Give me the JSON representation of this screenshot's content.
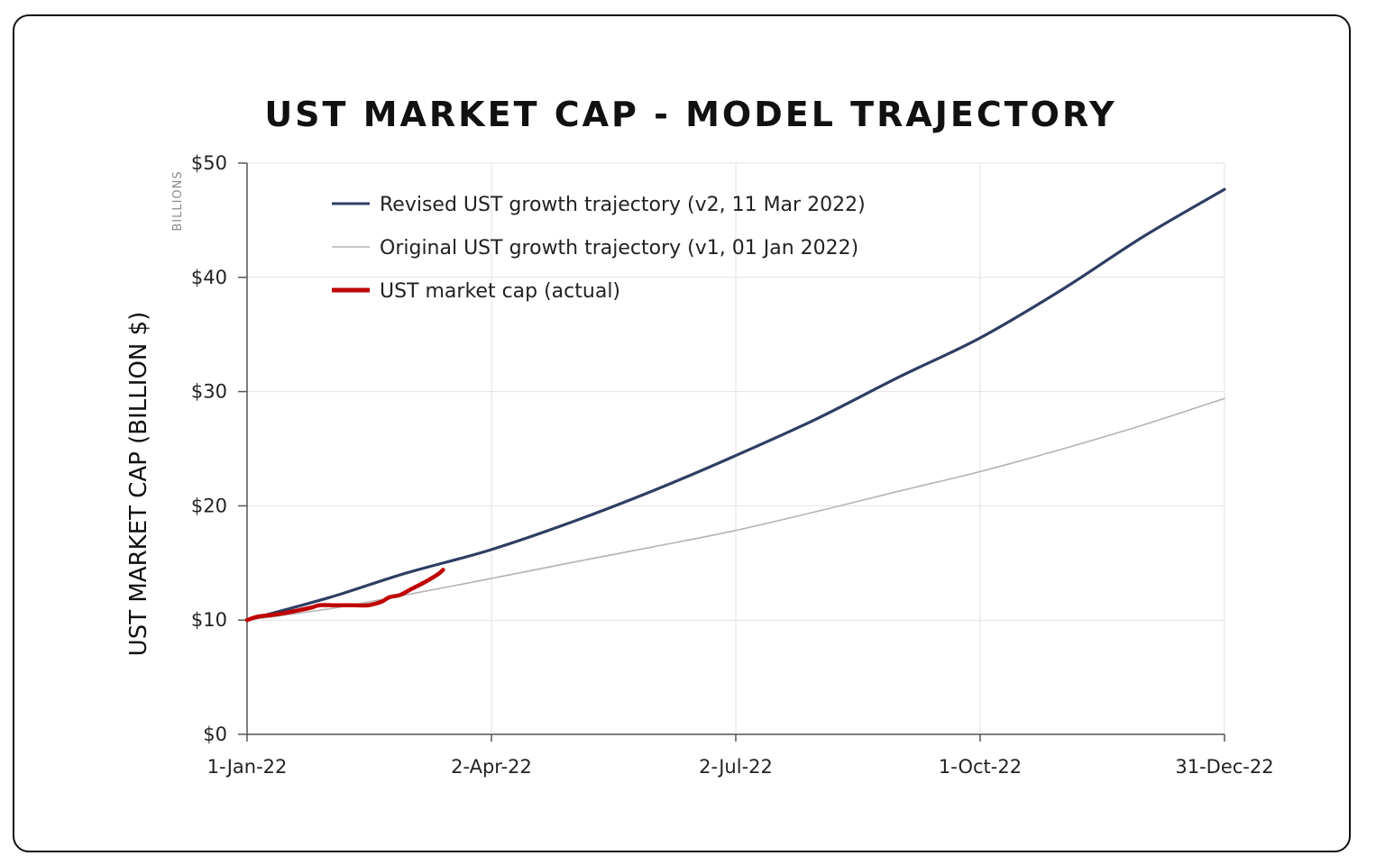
{
  "chart_data": {
    "type": "line",
    "title": "UST MARKET CAP - MODEL TRAJECTORY",
    "ylabel": "UST MARKET CAP (BILLION $)",
    "y_units_label": "BILLIONS",
    "xlabel": "",
    "x_range": [
      "2022-01-01",
      "2022-12-31"
    ],
    "ylim": [
      0,
      50
    ],
    "y_ticks": [
      0,
      10,
      20,
      30,
      40,
      50
    ],
    "y_tick_labels": [
      "$0",
      "$10",
      "$20",
      "$30",
      "$40",
      "$50"
    ],
    "x_ticks": [
      "2022-01-01",
      "2022-04-02",
      "2022-07-02",
      "2022-10-01",
      "2022-12-31"
    ],
    "x_tick_labels": [
      "1-Jan-22",
      "2-Apr-22",
      "2-Jul-22",
      "1-Oct-22",
      "31-Dec-22"
    ],
    "grid": true,
    "legend_position": "top-left",
    "series": [
      {
        "name": "Revised UST growth trajectory (v2, 11 Mar 2022)",
        "color": "#2e3d63",
        "points": [
          {
            "x": "2022-01-01",
            "y": 10.0
          },
          {
            "x": "2022-02-01",
            "y": 12.0
          },
          {
            "x": "2022-03-01",
            "y": 14.1
          },
          {
            "x": "2022-04-01",
            "y": 16.1
          },
          {
            "x": "2022-05-01",
            "y": 18.5
          },
          {
            "x": "2022-06-01",
            "y": 21.3
          },
          {
            "x": "2022-07-01",
            "y": 24.3
          },
          {
            "x": "2022-08-01",
            "y": 27.6
          },
          {
            "x": "2022-09-01",
            "y": 31.3
          },
          {
            "x": "2022-10-01",
            "y": 34.7
          },
          {
            "x": "2022-11-01",
            "y": 39.0
          },
          {
            "x": "2022-12-01",
            "y": 43.6
          },
          {
            "x": "2022-12-31",
            "y": 47.7
          }
        ]
      },
      {
        "name": "Original UST growth trajectory (v1, 01 Jan 2022)",
        "color": "#b3b3b3",
        "points": [
          {
            "x": "2022-01-01",
            "y": 10.0
          },
          {
            "x": "2022-02-01",
            "y": 11.0
          },
          {
            "x": "2022-03-01",
            "y": 12.2
          },
          {
            "x": "2022-04-01",
            "y": 13.6
          },
          {
            "x": "2022-05-01",
            "y": 15.0
          },
          {
            "x": "2022-06-01",
            "y": 16.4
          },
          {
            "x": "2022-07-01",
            "y": 17.8
          },
          {
            "x": "2022-08-01",
            "y": 19.5
          },
          {
            "x": "2022-09-01",
            "y": 21.3
          },
          {
            "x": "2022-10-01",
            "y": 23.0
          },
          {
            "x": "2022-11-01",
            "y": 25.0
          },
          {
            "x": "2022-12-01",
            "y": 27.1
          },
          {
            "x": "2022-12-31",
            "y": 29.4
          }
        ]
      },
      {
        "name": "UST market cap (actual)",
        "color": "#c00000",
        "points": [
          {
            "x": "2022-01-01",
            "y": 10.0
          },
          {
            "x": "2022-01-05",
            "y": 10.3
          },
          {
            "x": "2022-01-12",
            "y": 10.5
          },
          {
            "x": "2022-01-19",
            "y": 10.8
          },
          {
            "x": "2022-01-25",
            "y": 11.1
          },
          {
            "x": "2022-01-28",
            "y": 11.3
          },
          {
            "x": "2022-02-03",
            "y": 11.3
          },
          {
            "x": "2022-02-10",
            "y": 11.3
          },
          {
            "x": "2022-02-15",
            "y": 11.3
          },
          {
            "x": "2022-02-20",
            "y": 11.6
          },
          {
            "x": "2022-02-23",
            "y": 12.0
          },
          {
            "x": "2022-02-27",
            "y": 12.2
          },
          {
            "x": "2022-03-03",
            "y": 12.7
          },
          {
            "x": "2022-03-08",
            "y": 13.3
          },
          {
            "x": "2022-03-13",
            "y": 14.0
          },
          {
            "x": "2022-03-15",
            "y": 14.4
          }
        ]
      }
    ]
  }
}
